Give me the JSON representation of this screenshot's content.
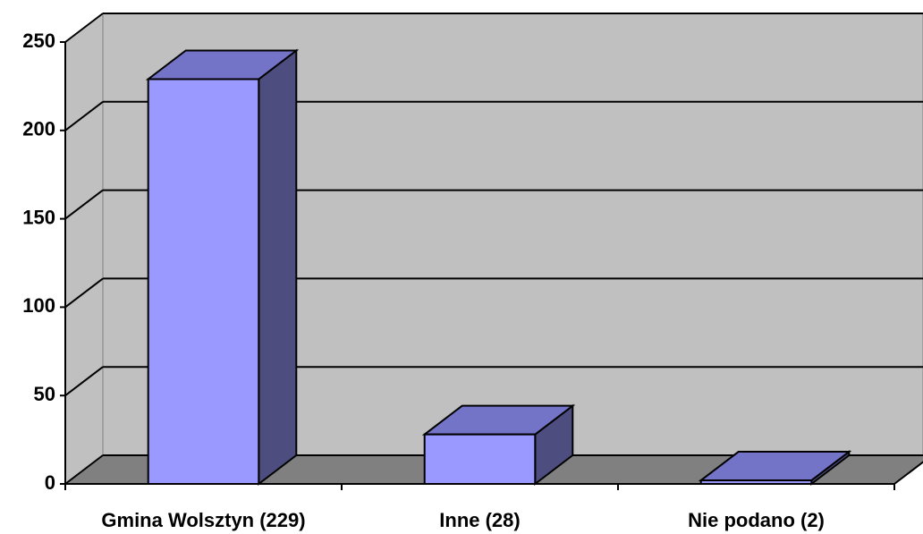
{
  "chart_data": {
    "type": "bar3d",
    "categories": [
      "Gmina Wolsztyn (229)",
      "Inne (28)",
      "Nie podano (2)"
    ],
    "values": [
      229,
      28,
      2
    ],
    "color": "#9999ff",
    "ylim": [
      0,
      250
    ],
    "yticks": [
      0,
      50,
      100,
      150,
      200,
      250
    ],
    "grid": true
  }
}
